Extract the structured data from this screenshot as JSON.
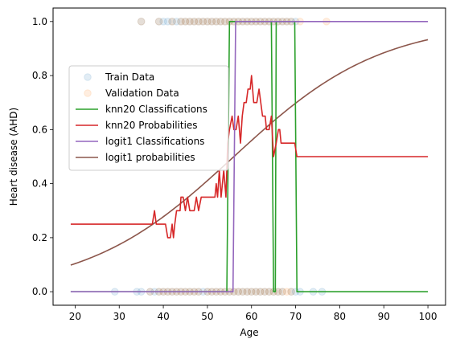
{
  "chart_data": {
    "type": "line",
    "title": "",
    "xlabel": "Age",
    "ylabel": "Heart disease (AHD)",
    "xlim": [
      15.0,
      104.0
    ],
    "ylim": [
      -0.05,
      1.05
    ],
    "xticks": [
      20,
      30,
      40,
      50,
      60,
      70,
      80,
      90,
      100
    ],
    "yticks": [
      0.0,
      0.2,
      0.4,
      0.6,
      0.8,
      1.0
    ],
    "xtick_labels": [
      "20",
      "30",
      "40",
      "50",
      "60",
      "70",
      "80",
      "90",
      "100"
    ],
    "ytick_labels": [
      "0.0",
      "0.2",
      "0.4",
      "0.6",
      "0.8",
      "1.0"
    ],
    "grid": false,
    "legend_position": "center-left",
    "colors": {
      "train": "#1f77b4",
      "validation": "#ff7f0e",
      "knn_class": "#2ca02c",
      "knn_prob": "#d62728",
      "logit_class": "#9467bd",
      "logit_prob": "#8c564b"
    },
    "legend": [
      {
        "label": "Train Data",
        "kind": "marker",
        "color": "#1f77b4"
      },
      {
        "label": "Validation Data",
        "kind": "marker",
        "color": "#ff7f0e"
      },
      {
        "label": "knn20 Classifications",
        "kind": "line",
        "color": "#2ca02c"
      },
      {
        "label": "knn20 Probabilities",
        "kind": "line",
        "color": "#d62728"
      },
      {
        "label": "logit1 Classifications",
        "kind": "line",
        "color": "#9467bd"
      },
      {
        "label": "logit1 probabilities",
        "kind": "line",
        "color": "#8c564b"
      }
    ],
    "scatter": [
      {
        "name": "Train Data",
        "color": "#1f77b4",
        "points_y1": [
          35,
          39,
          40,
          41,
          42,
          43,
          44,
          45,
          46,
          47,
          48,
          49,
          50,
          51,
          52,
          53,
          54,
          55,
          56,
          57,
          58,
          59,
          60,
          61,
          62,
          63,
          64,
          65,
          66,
          67,
          68,
          69,
          70
        ],
        "points_y0": [
          29,
          34,
          35,
          37,
          38,
          39,
          40,
          41,
          42,
          43,
          44,
          45,
          46,
          47,
          48,
          49,
          50,
          51,
          52,
          53,
          54,
          55,
          56,
          57,
          58,
          59,
          60,
          61,
          62,
          63,
          64,
          65,
          66,
          67,
          69,
          70,
          71,
          74,
          76
        ]
      },
      {
        "name": "Validation Data",
        "color": "#ff7f0e",
        "points_y1": [
          35,
          39,
          42,
          44,
          45,
          46,
          47,
          48,
          49,
          50,
          51,
          52,
          53,
          54,
          55,
          56,
          57,
          58,
          59,
          60,
          61,
          62,
          63,
          64,
          65,
          66,
          67,
          68,
          69,
          71,
          77
        ],
        "points_y0": [
          37,
          39,
          40,
          41,
          42,
          43,
          44,
          45,
          46,
          47,
          48,
          50,
          51,
          52,
          53,
          54,
          55,
          56,
          57,
          58,
          59,
          60,
          61,
          62,
          63,
          64,
          65,
          66,
          67,
          68,
          69
        ]
      }
    ],
    "lines": [
      {
        "name": "knn20 Classifications",
        "color": "#2ca02c",
        "points": [
          [
            19,
            0
          ],
          [
            54.4,
            0
          ],
          [
            55,
            1
          ],
          [
            64.5,
            1
          ],
          [
            65,
            0
          ],
          [
            65.4,
            0
          ],
          [
            65.6,
            1
          ],
          [
            69.8,
            1
          ],
          [
            70.3,
            0
          ],
          [
            100,
            0
          ]
        ]
      },
      {
        "name": "knn20 Probabilities",
        "color": "#d62728",
        "points": [
          [
            19,
            0.25
          ],
          [
            37.5,
            0.25
          ],
          [
            38,
            0.3
          ],
          [
            38.4,
            0.25
          ],
          [
            40.5,
            0.25
          ],
          [
            41,
            0.2
          ],
          [
            41.6,
            0.2
          ],
          [
            42,
            0.25
          ],
          [
            42.3,
            0.2
          ],
          [
            42.6,
            0.25
          ],
          [
            43,
            0.3
          ],
          [
            43.8,
            0.3
          ],
          [
            44,
            0.35
          ],
          [
            44.5,
            0.35
          ],
          [
            45,
            0.3
          ],
          [
            45.5,
            0.35
          ],
          [
            46,
            0.3
          ],
          [
            47,
            0.3
          ],
          [
            47.5,
            0.35
          ],
          [
            48,
            0.3
          ],
          [
            48.6,
            0.35
          ],
          [
            51.7,
            0.35
          ],
          [
            52,
            0.4
          ],
          [
            52.3,
            0.35
          ],
          [
            52.7,
            0.45
          ],
          [
            53.1,
            0.35
          ],
          [
            53.7,
            0.45
          ],
          [
            54.2,
            0.35
          ],
          [
            54.6,
            0.55
          ],
          [
            55,
            0.6
          ],
          [
            55.6,
            0.65
          ],
          [
            56,
            0.6
          ],
          [
            56.5,
            0.6
          ],
          [
            57,
            0.65
          ],
          [
            57.5,
            0.55
          ],
          [
            57.9,
            0.65
          ],
          [
            58.3,
            0.7
          ],
          [
            58.8,
            0.7
          ],
          [
            59.2,
            0.75
          ],
          [
            59.7,
            0.75
          ],
          [
            60,
            0.8
          ],
          [
            60.5,
            0.7
          ],
          [
            61.2,
            0.7
          ],
          [
            61.7,
            0.75
          ],
          [
            62.5,
            0.65
          ],
          [
            63.1,
            0.65
          ],
          [
            63.4,
            0.6
          ],
          [
            64,
            0.6
          ],
          [
            64.5,
            0.65
          ],
          [
            65,
            0.5
          ],
          [
            65.6,
            0.55
          ],
          [
            66.1,
            0.6
          ],
          [
            66.4,
            0.6
          ],
          [
            66.7,
            0.55
          ],
          [
            69.8,
            0.55
          ],
          [
            70.3,
            0.5
          ],
          [
            100,
            0.5
          ]
        ]
      },
      {
        "name": "logit1 Classifications",
        "color": "#9467bd",
        "points": [
          [
            19,
            0
          ],
          [
            55.8,
            0
          ],
          [
            56.4,
            1
          ],
          [
            100,
            1
          ]
        ]
      },
      {
        "name": "logit1 probabilities",
        "color": "#8c564b",
        "logistic": {
          "x0": 56.0,
          "k": 0.0598
        },
        "x_range": [
          19,
          100
        ]
      }
    ]
  }
}
